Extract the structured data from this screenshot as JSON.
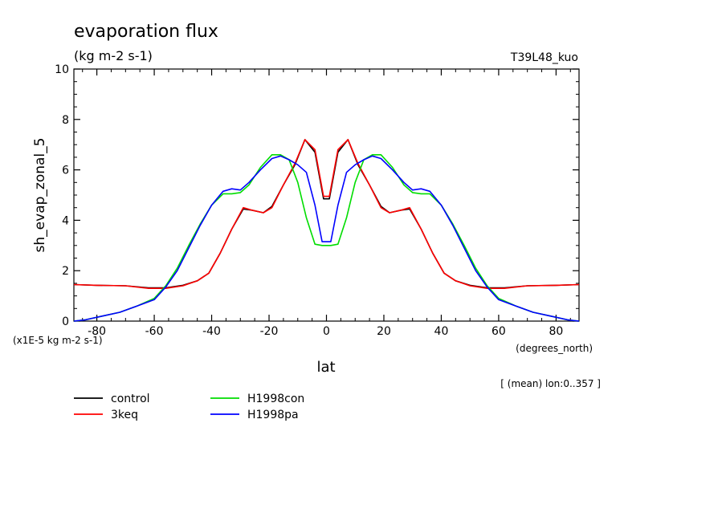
{
  "chart_data": {
    "type": "line",
    "title": "evaporation flux",
    "subtitle": "(kg m-2 s-1)",
    "run_label": "T39L48_kuo",
    "ylabel": "sh_evap_zonal_5",
    "xlabel": "lat",
    "x_units": "(degrees_north)",
    "y_scale_note": "(x1E-5 kg m-2 s-1)",
    "footnote": "[ (mean) lon:0..357 ]",
    "xlim": [
      -88,
      88
    ],
    "ylim": [
      0,
      10
    ],
    "x_ticks": [
      -80,
      -60,
      -40,
      -20,
      0,
      20,
      40,
      60,
      80
    ],
    "x_tick_labels": [
      "-80",
      "-60",
      "-40",
      "-20",
      "0",
      "20",
      "40",
      "60",
      "80"
    ],
    "y_ticks": [
      0,
      2,
      4,
      6,
      8,
      10
    ],
    "y_tick_labels": [
      "0",
      "2",
      "4",
      "6",
      "8",
      "10"
    ],
    "grid": false,
    "legend_position": "bottom-left",
    "series": [
      {
        "name": "control",
        "color": "#000000",
        "x": [
          -88,
          -80,
          -70,
          -62,
          -56,
          -50,
          -45,
          -41,
          -37,
          -33,
          -29,
          -26,
          -22,
          -19,
          -15,
          -11,
          -7.5,
          -4,
          -1,
          1,
          4,
          7.5,
          11,
          15,
          19,
          22,
          26,
          29,
          33,
          37,
          41,
          45,
          50,
          56,
          62,
          70,
          80,
          88
        ],
        "y": [
          1.45,
          1.42,
          1.4,
          1.32,
          1.32,
          1.42,
          1.6,
          1.9,
          2.7,
          3.65,
          4.45,
          4.4,
          4.3,
          4.55,
          5.4,
          6.2,
          7.2,
          6.7,
          4.85,
          4.85,
          6.7,
          7.2,
          6.2,
          5.4,
          4.55,
          4.3,
          4.4,
          4.45,
          3.65,
          2.7,
          1.9,
          1.6,
          1.42,
          1.32,
          1.32,
          1.4,
          1.42,
          1.45
        ]
      },
      {
        "name": "3keq",
        "color": "#ff0000",
        "x": [
          -88,
          -80,
          -70,
          -62,
          -56,
          -50,
          -45,
          -41,
          -37,
          -33,
          -29,
          -26,
          -22,
          -19,
          -15,
          -11,
          -7.5,
          -4,
          -1,
          1,
          4,
          7.5,
          11,
          15,
          19,
          22,
          26,
          29,
          33,
          37,
          41,
          45,
          50,
          56,
          62,
          70,
          80,
          88
        ],
        "y": [
          1.45,
          1.42,
          1.4,
          1.3,
          1.3,
          1.4,
          1.6,
          1.9,
          2.7,
          3.65,
          4.5,
          4.4,
          4.3,
          4.5,
          5.4,
          6.25,
          7.2,
          6.8,
          4.95,
          4.95,
          6.8,
          7.2,
          6.25,
          5.4,
          4.5,
          4.3,
          4.4,
          4.5,
          3.65,
          2.7,
          1.9,
          1.6,
          1.4,
          1.3,
          1.3,
          1.4,
          1.42,
          1.45
        ]
      },
      {
        "name": "H1998con",
        "color": "#00dd00",
        "x": [
          -88,
          -84,
          -78,
          -72,
          -66,
          -60,
          -56,
          -52,
          -48,
          -44,
          -40,
          -36,
          -33,
          -30,
          -27,
          -23,
          -19,
          -16,
          -13,
          -10,
          -7,
          -4,
          -1.5,
          1.5,
          4,
          7,
          10,
          13,
          16,
          19,
          23,
          27,
          30,
          33,
          36,
          40,
          44,
          48,
          52,
          56,
          60,
          66,
          72,
          78,
          84,
          88
        ],
        "y": [
          0.0,
          0.05,
          0.2,
          0.35,
          0.6,
          0.9,
          1.4,
          2.1,
          3.0,
          3.85,
          4.6,
          5.05,
          5.05,
          5.1,
          5.4,
          6.1,
          6.6,
          6.6,
          6.4,
          5.5,
          4.1,
          3.05,
          3.0,
          3.0,
          3.05,
          4.1,
          5.5,
          6.4,
          6.6,
          6.6,
          6.1,
          5.4,
          5.1,
          5.05,
          5.05,
          4.6,
          3.85,
          3.0,
          2.1,
          1.4,
          0.9,
          0.6,
          0.35,
          0.2,
          0.05,
          0.0
        ]
      },
      {
        "name": "H1998pa",
        "color": "#0000ff",
        "x": [
          -88,
          -84,
          -78,
          -72,
          -66,
          -60,
          -56,
          -52,
          -48,
          -44,
          -40,
          -36,
          -33,
          -30,
          -27,
          -23,
          -19,
          -16,
          -13,
          -10,
          -7,
          -4,
          -1.5,
          1.5,
          4,
          7,
          10,
          13,
          16,
          19,
          23,
          27,
          30,
          33,
          36,
          40,
          44,
          48,
          52,
          56,
          60,
          66,
          72,
          78,
          84,
          88
        ],
        "y": [
          0.0,
          0.05,
          0.2,
          0.35,
          0.6,
          0.85,
          1.35,
          2.0,
          2.9,
          3.8,
          4.6,
          5.15,
          5.25,
          5.2,
          5.5,
          6.0,
          6.45,
          6.55,
          6.4,
          6.2,
          5.9,
          4.6,
          3.15,
          3.15,
          4.6,
          5.9,
          6.2,
          6.4,
          6.55,
          6.45,
          6.0,
          5.5,
          5.2,
          5.25,
          5.15,
          4.6,
          3.8,
          2.9,
          2.0,
          1.35,
          0.85,
          0.6,
          0.35,
          0.2,
          0.05,
          0.0
        ]
      }
    ]
  }
}
